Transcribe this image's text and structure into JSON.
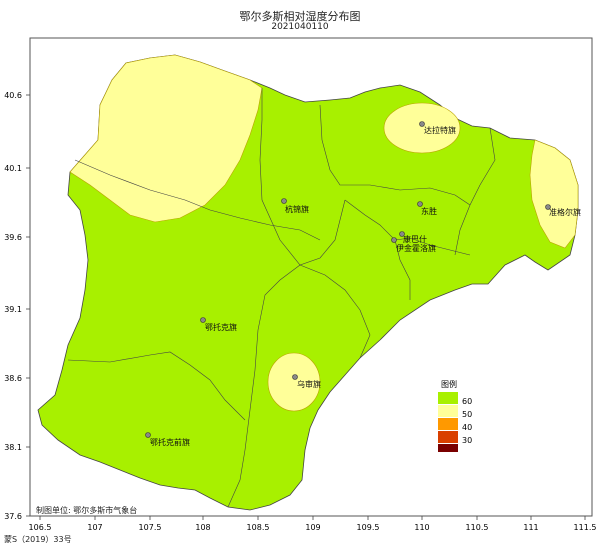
{
  "title": "鄂尔多斯相对湿度分布图",
  "date": "2021040110",
  "axes": {
    "x_ticks": [
      "106.5",
      "107",
      "107.5",
      "108",
      "108.5",
      "109",
      "109.5",
      "110",
      "110.5",
      "111",
      "111.5"
    ],
    "y_ticks": [
      "40.6",
      "40.1",
      "39.6",
      "39.1",
      "38.6",
      "38.1",
      "37.6"
    ]
  },
  "legend": {
    "title": "图例",
    "items": [
      {
        "label": "60",
        "color": "#a8f000"
      },
      {
        "label": "50",
        "color": "#ffff99"
      },
      {
        "label": "40",
        "color": "#ff9900"
      },
      {
        "label": "30",
        "color": "#d94000"
      },
      {
        "label": "",
        "color": "#7a0000"
      }
    ]
  },
  "places": [
    {
      "id": "hangjin",
      "label": "杭锦旗"
    },
    {
      "id": "dalate",
      "label": "达拉特旗"
    },
    {
      "id": "dongsheng",
      "label": "东胜"
    },
    {
      "id": "zhungeer",
      "label": "准格尔旗"
    },
    {
      "id": "kangbashi",
      "label": "康巴什"
    },
    {
      "id": "yijinhuoluo",
      "label": "伊金霍洛旗"
    },
    {
      "id": "etuoke",
      "label": "鄂托克旗"
    },
    {
      "id": "wushen",
      "label": "乌审旗"
    },
    {
      "id": "etuokeqian",
      "label": "鄂托克前旗"
    }
  ],
  "footer": {
    "credit": "制图单位: 鄂尔多斯市气象台",
    "permit": "蒙S（2019）33号"
  }
}
